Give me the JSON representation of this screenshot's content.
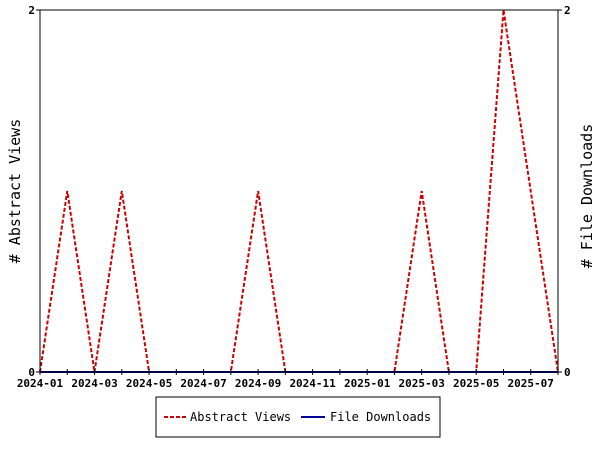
{
  "chart_data": {
    "type": "line",
    "x": [
      "2024-01",
      "2024-02",
      "2024-03",
      "2024-04",
      "2024-05",
      "2024-06",
      "2024-07",
      "2024-08",
      "2024-09",
      "2024-10",
      "2024-11",
      "2024-12",
      "2025-01",
      "2025-02",
      "2025-03",
      "2025-04",
      "2025-05",
      "2025-06",
      "2025-07",
      "2025-08"
    ],
    "x_tick_labels": [
      "2024-01",
      "2024-03",
      "2024-05",
      "2024-07",
      "2024-09",
      "2024-11",
      "2025-01",
      "2025-03",
      "2025-05",
      "2025-07"
    ],
    "series": [
      {
        "name": "Abstract Views",
        "axis": "left",
        "color": "#cc0000",
        "dash": "dashed",
        "values": [
          0,
          1,
          0,
          1,
          0,
          0,
          0,
          0,
          1,
          0,
          0,
          0,
          0,
          0,
          1,
          0,
          0,
          2,
          1,
          0
        ]
      },
      {
        "name": "File Downloads",
        "axis": "right",
        "color": "#000099",
        "dash": "solid",
        "values": [
          0,
          0,
          0,
          0,
          0,
          0,
          0,
          0,
          0,
          0,
          0,
          0,
          0,
          0,
          0,
          0,
          0,
          0,
          0,
          0
        ]
      }
    ],
    "ylabel_left": "# Abstract Views",
    "ylabel_right": "# File Downloads",
    "ylim_left": [
      0,
      2
    ],
    "ylim_right": [
      0,
      2
    ],
    "y_ticks_left": [
      "0",
      "2"
    ],
    "y_ticks_right": [
      "0",
      "2"
    ],
    "grid": false,
    "legend_position": "bottom-center"
  }
}
